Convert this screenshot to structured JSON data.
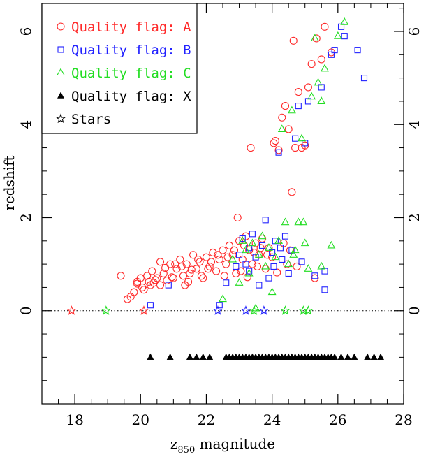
{
  "chart_data": {
    "type": "scatter",
    "xlabel": "z",
    "xlabel_sub": "850",
    "xlabel_suffix": "magnitude",
    "ylabel": "redshift",
    "xlim": [
      17,
      28
    ],
    "ylim": [
      -2,
      6.6
    ],
    "xticks": [
      18,
      20,
      22,
      24,
      26,
      28
    ],
    "yticks": [
      0,
      2,
      4,
      6
    ],
    "reference_line": {
      "y": 0,
      "style": "dotted"
    },
    "legend_position": "top-left",
    "series": [
      {
        "name": "Quality flag: A",
        "marker": "circle",
        "color": "#ff2a2a",
        "points": [
          [
            19.4,
            0.75
          ],
          [
            19.6,
            0.25
          ],
          [
            19.7,
            0.3
          ],
          [
            19.8,
            0.4
          ],
          [
            19.9,
            0.62
          ],
          [
            20.0,
            0.7
          ],
          [
            20.1,
            0.45
          ],
          [
            20.2,
            0.75
          ],
          [
            20.3,
            0.55
          ],
          [
            20.35,
            0.85
          ],
          [
            20.4,
            0.6
          ],
          [
            20.5,
            0.7
          ],
          [
            20.6,
            1.05
          ],
          [
            20.7,
            0.8
          ],
          [
            20.8,
            0.65
          ],
          [
            20.9,
            1.0
          ],
          [
            21.0,
            0.7
          ],
          [
            21.1,
            0.9
          ],
          [
            21.2,
            1.1
          ],
          [
            21.3,
            0.75
          ],
          [
            21.35,
            0.55
          ],
          [
            21.4,
            1.0
          ],
          [
            21.5,
            0.8
          ],
          [
            21.6,
            1.2
          ],
          [
            21.7,
            0.9
          ],
          [
            21.8,
            1.05
          ],
          [
            21.9,
            0.7
          ],
          [
            22.0,
            1.15
          ],
          [
            22.1,
            0.95
          ],
          [
            22.2,
            1.25
          ],
          [
            22.3,
            0.85
          ],
          [
            22.4,
            1.1
          ],
          [
            22.5,
            1.3
          ],
          [
            22.6,
            1.0
          ],
          [
            22.7,
            1.4
          ],
          [
            22.8,
            1.2
          ],
          [
            22.9,
            0.8
          ],
          [
            22.95,
            2.0
          ],
          [
            23.0,
            1.5
          ],
          [
            23.1,
            1.1
          ],
          [
            23.2,
            1.6
          ],
          [
            23.3,
            1.3
          ],
          [
            23.35,
            3.5
          ],
          [
            23.4,
            1.0
          ],
          [
            23.5,
            1.45
          ],
          [
            23.6,
            1.2
          ],
          [
            23.7,
            1.55
          ],
          [
            23.8,
            0.9
          ],
          [
            23.9,
            1.35
          ],
          [
            24.0,
            1.15
          ],
          [
            24.05,
            3.6
          ],
          [
            24.1,
            3.65
          ],
          [
            24.2,
            3.45
          ],
          [
            24.3,
            4.15
          ],
          [
            24.4,
            4.4
          ],
          [
            24.5,
            3.9
          ],
          [
            24.55,
            1.3
          ],
          [
            24.6,
            2.55
          ],
          [
            24.65,
            5.8
          ],
          [
            24.7,
            3.5
          ],
          [
            24.8,
            4.7
          ],
          [
            24.9,
            3.5
          ],
          [
            25.0,
            3.55
          ],
          [
            25.1,
            4.8
          ],
          [
            25.2,
            5.3
          ],
          [
            25.3,
            0.7
          ],
          [
            25.35,
            5.85
          ],
          [
            25.5,
            5.4
          ],
          [
            25.6,
            6.1
          ],
          [
            25.8,
            5.55
          ],
          [
            19.9,
            0.58
          ],
          [
            20.05,
            0.5
          ],
          [
            20.25,
            0.62
          ],
          [
            20.45,
            0.66
          ],
          [
            20.6,
            0.55
          ],
          [
            20.75,
            0.92
          ],
          [
            20.95,
            0.72
          ],
          [
            21.05,
            1.0
          ],
          [
            21.25,
            0.95
          ],
          [
            21.45,
            0.62
          ],
          [
            21.55,
            0.88
          ],
          [
            21.75,
            1.1
          ],
          [
            21.85,
            0.75
          ],
          [
            22.05,
            0.9
          ],
          [
            22.15,
            1.05
          ],
          [
            22.35,
            1.2
          ],
          [
            22.55,
            0.75
          ],
          [
            22.65,
            1.15
          ],
          [
            22.85,
            1.3
          ],
          [
            23.05,
            0.85
          ],
          [
            23.15,
            1.4
          ],
          [
            23.25,
            0.72
          ],
          [
            23.45,
            1.25
          ],
          [
            23.55,
            0.95
          ],
          [
            23.65,
            1.35
          ],
          [
            23.85,
            1.2
          ],
          [
            24.15,
            0.82
          ],
          [
            24.35,
            1.45
          ],
          [
            24.45,
            1.0
          ],
          [
            24.75,
            0.95
          ]
        ]
      },
      {
        "name": "Quality flag: B",
        "marker": "square",
        "color": "#2222ff",
        "points": [
          [
            20.3,
            0.12
          ],
          [
            20.85,
            0.55
          ],
          [
            22.4,
            0.12
          ],
          [
            22.6,
            0.6
          ],
          [
            22.9,
            0.95
          ],
          [
            23.0,
            1.2
          ],
          [
            23.1,
            1.55
          ],
          [
            23.2,
            1.0
          ],
          [
            23.3,
            1.35
          ],
          [
            23.4,
            1.65
          ],
          [
            23.5,
            1.15
          ],
          [
            23.6,
            0.55
          ],
          [
            23.7,
            1.4
          ],
          [
            23.8,
            1.95
          ],
          [
            23.9,
            0.7
          ],
          [
            24.0,
            1.25
          ],
          [
            24.1,
            1.5
          ],
          [
            24.2,
            3.4
          ],
          [
            24.3,
            1.1
          ],
          [
            24.4,
            1.6
          ],
          [
            24.5,
            0.8
          ],
          [
            24.6,
            1.3
          ],
          [
            24.7,
            3.7
          ],
          [
            24.8,
            4.4
          ],
          [
            24.9,
            1.05
          ],
          [
            25.0,
            3.6
          ],
          [
            25.1,
            4.5
          ],
          [
            25.3,
            0.75
          ],
          [
            25.5,
            4.8
          ],
          [
            25.6,
            0.85
          ],
          [
            25.8,
            5.5
          ],
          [
            25.9,
            5.6
          ],
          [
            26.1,
            6.1
          ],
          [
            26.2,
            5.9
          ],
          [
            26.6,
            5.6
          ],
          [
            26.8,
            5.0
          ],
          [
            25.6,
            0.45
          ],
          [
            23.3,
            0.85
          ],
          [
            24.05,
            0.95
          ],
          [
            24.25,
            1.35
          ]
        ]
      },
      {
        "name": "Quality flag: C",
        "marker": "triangle",
        "color": "#22dd22",
        "points": [
          [
            22.5,
            0.25
          ],
          [
            22.8,
            1.1
          ],
          [
            23.0,
            0.6
          ],
          [
            23.2,
            1.3
          ],
          [
            23.3,
            0.8
          ],
          [
            23.4,
            1.45
          ],
          [
            23.5,
            0.05
          ],
          [
            23.6,
            1.2
          ],
          [
            23.7,
            1.6
          ],
          [
            23.8,
            0.95
          ],
          [
            23.9,
            1.35
          ],
          [
            24.0,
            0.4
          ],
          [
            24.1,
            1.15
          ],
          [
            24.2,
            1.5
          ],
          [
            24.3,
            3.9
          ],
          [
            24.4,
            1.9
          ],
          [
            24.5,
            1.0
          ],
          [
            24.6,
            4.3
          ],
          [
            24.7,
            1.3
          ],
          [
            24.8,
            1.9
          ],
          [
            24.9,
            3.7
          ],
          [
            25.0,
            1.45
          ],
          [
            25.1,
            0.9
          ],
          [
            25.2,
            4.6
          ],
          [
            25.3,
            5.85
          ],
          [
            25.4,
            4.9
          ],
          [
            25.5,
            4.5
          ],
          [
            25.6,
            5.2
          ],
          [
            25.8,
            1.4
          ],
          [
            26.0,
            5.9
          ],
          [
            26.2,
            6.2
          ],
          [
            25.5,
            0.95
          ],
          [
            24.95,
            1.9
          ],
          [
            23.1,
            1.5
          ],
          [
            24.65,
            1.2
          ]
        ]
      },
      {
        "name": "Quality flag: X",
        "marker": "filled-triangle",
        "color": "#000000",
        "points": [
          [
            20.3,
            -1
          ],
          [
            20.9,
            -1
          ],
          [
            21.5,
            -1
          ],
          [
            21.7,
            -1
          ],
          [
            21.9,
            -1
          ],
          [
            22.1,
            -1
          ],
          [
            22.6,
            -1
          ],
          [
            22.7,
            -1
          ],
          [
            22.8,
            -1
          ],
          [
            22.9,
            -1
          ],
          [
            23.0,
            -1
          ],
          [
            23.1,
            -1
          ],
          [
            23.2,
            -1
          ],
          [
            23.3,
            -1
          ],
          [
            23.4,
            -1
          ],
          [
            23.5,
            -1
          ],
          [
            23.6,
            -1
          ],
          [
            23.7,
            -1
          ],
          [
            23.8,
            -1
          ],
          [
            23.9,
            -1
          ],
          [
            24.0,
            -1
          ],
          [
            24.1,
            -1
          ],
          [
            24.2,
            -1
          ],
          [
            24.3,
            -1
          ],
          [
            24.4,
            -1
          ],
          [
            24.5,
            -1
          ],
          [
            24.6,
            -1
          ],
          [
            24.7,
            -1
          ],
          [
            24.8,
            -1
          ],
          [
            24.9,
            -1
          ],
          [
            25.0,
            -1
          ],
          [
            25.1,
            -1
          ],
          [
            25.2,
            -1
          ],
          [
            25.3,
            -1
          ],
          [
            25.4,
            -1
          ],
          [
            25.5,
            -1
          ],
          [
            25.6,
            -1
          ],
          [
            25.7,
            -1
          ],
          [
            25.8,
            -1
          ],
          [
            25.9,
            -1
          ],
          [
            26.1,
            -1
          ],
          [
            26.3,
            -1
          ],
          [
            26.5,
            -1
          ],
          [
            26.9,
            -1
          ],
          [
            27.1,
            -1
          ],
          [
            27.3,
            -1
          ]
        ]
      },
      {
        "name": "Stars",
        "marker": "star",
        "color": "#000000",
        "points": [
          {
            "x": 17.9,
            "y": 0,
            "color": "#ff2a2a"
          },
          {
            "x": 18.95,
            "y": 0,
            "color": "#22dd22"
          },
          {
            "x": 20.1,
            "y": 0,
            "color": "#ff2a2a"
          },
          {
            "x": 22.35,
            "y": 0,
            "color": "#2222ff"
          },
          {
            "x": 23.2,
            "y": 0,
            "color": "#2222ff"
          },
          {
            "x": 23.45,
            "y": 0,
            "color": "#22dd22"
          },
          {
            "x": 23.75,
            "y": 0,
            "color": "#2222ff"
          },
          {
            "x": 24.4,
            "y": 0,
            "color": "#22dd22"
          },
          {
            "x": 24.95,
            "y": 0,
            "color": "#22dd22"
          },
          {
            "x": 25.1,
            "y": 0,
            "color": "#22dd22"
          }
        ]
      }
    ]
  }
}
